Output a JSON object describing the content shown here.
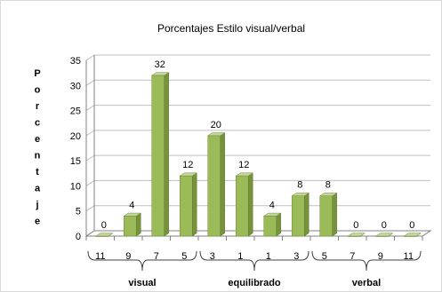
{
  "chart_data": {
    "type": "bar",
    "title": "Porcentajes Estilo visual/verbal",
    "xlabel": "",
    "ylabel": "P o r c e n t a j e",
    "ylabel_letters": [
      "P",
      "o",
      "r",
      "c",
      "e",
      "n",
      "t",
      "a",
      "j",
      "e"
    ],
    "ylim": [
      0,
      35
    ],
    "yticks": [
      0,
      5,
      10,
      15,
      20,
      25,
      30,
      35
    ],
    "grid": true,
    "categories": [
      "11",
      "9",
      "7",
      "5",
      "3",
      "1",
      "1",
      "3",
      "5",
      "7",
      "9",
      "11"
    ],
    "values": [
      0,
      4,
      32,
      12,
      20,
      12,
      4,
      8,
      8,
      0,
      0,
      0
    ],
    "data_labels": [
      "0",
      "4",
      "32",
      "12",
      "20",
      "12",
      "4",
      "8",
      "8",
      "0",
      "0",
      "0"
    ],
    "groups": [
      {
        "label": "visual",
        "start": 0,
        "end": 3
      },
      {
        "label": "equilibrado",
        "start": 4,
        "end": 7
      },
      {
        "label": "verbal",
        "start": 8,
        "end": 11
      }
    ],
    "colors": {
      "bar_front": "#9bbb59",
      "bar_top": "#c3d69b",
      "bar_side": "#76923c",
      "grid": "#bfbfbf",
      "axis": "#808080",
      "text": "#000000"
    }
  }
}
